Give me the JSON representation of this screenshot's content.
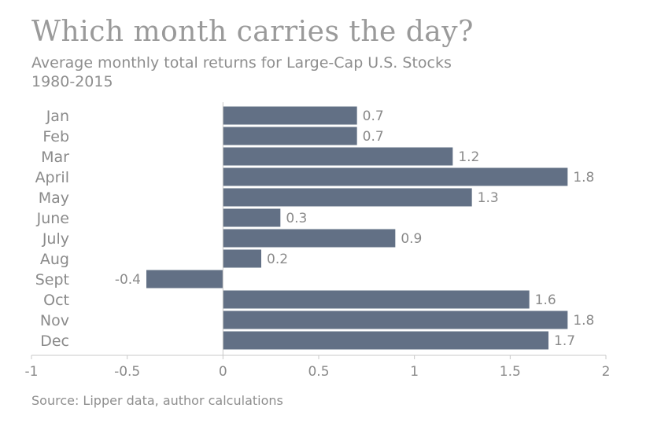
{
  "chart_data": {
    "type": "bar",
    "orientation": "horizontal",
    "title": "Which month carries the day?",
    "subtitle_line1": "Average monthly total returns for Large-Cap U.S. Stocks",
    "subtitle_line2": "1980-2015",
    "source": "Source: Lipper data, author calculations",
    "categories": [
      "Jan",
      "Feb",
      "Mar",
      "April",
      "May",
      "June",
      "July",
      "Aug",
      "Sept",
      "Oct",
      "Nov",
      "Dec"
    ],
    "values": [
      0.7,
      0.7,
      1.2,
      1.8,
      1.3,
      0.3,
      0.9,
      0.2,
      -0.4,
      1.6,
      1.8,
      1.7
    ],
    "value_labels": [
      "0.7",
      "0.7",
      "1.2",
      "1.8",
      "1.3",
      "0.3",
      "0.9",
      "0.2",
      "-0.4",
      "1.6",
      "1.8",
      "1.7"
    ],
    "xlim": [
      -1,
      2
    ],
    "xticks": [
      -1,
      -0.5,
      0,
      0.5,
      1,
      1.5,
      2
    ],
    "xtick_labels": [
      "-1",
      "-0.5",
      "0",
      "0.5",
      "1",
      "1.5",
      "2"
    ],
    "grid": false,
    "legend": "none",
    "bar_color": "#627085",
    "axis_color": "#c8c8c8"
  }
}
